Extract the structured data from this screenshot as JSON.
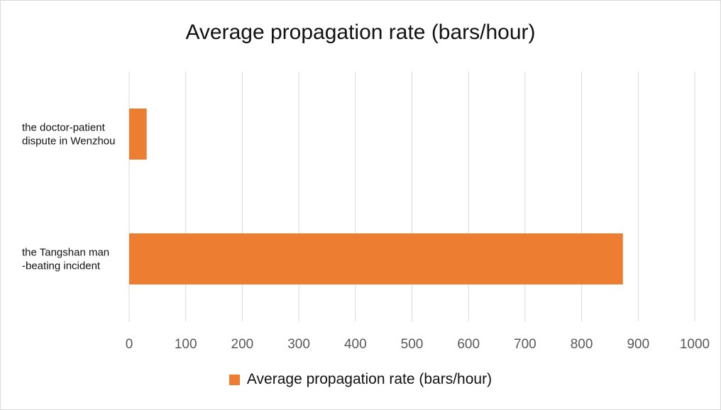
{
  "chart_data": {
    "type": "bar",
    "orientation": "horizontal",
    "title": "Average propagation rate (bars/hour)",
    "categories": [
      [
        "the doctor-patient",
        "dispute in Wenzhou"
      ],
      [
        "the Tangshan man",
        "-beating incident"
      ]
    ],
    "series": [
      {
        "name": "Average propagation rate (bars/hour)",
        "values": [
          31,
          873
        ],
        "color": "#ED7D31"
      }
    ],
    "xlim": [
      0,
      1000
    ],
    "xticks": [
      0,
      100,
      200,
      300,
      400,
      500,
      600,
      700,
      800,
      900,
      1000
    ],
    "grid": "vertical",
    "legend": "bottom"
  }
}
